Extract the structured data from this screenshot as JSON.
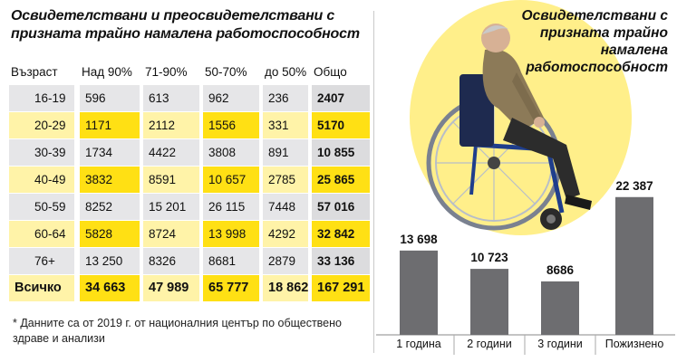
{
  "left_title": "Освидетелствани и преосвидетелствани с призната трайно намалена  работоспособност",
  "table": {
    "headers": [
      "Възраст",
      "Над 90%",
      "71-90%",
      "50-70%",
      "до 50%",
      "Общо"
    ],
    "rows": [
      [
        "16-19",
        "596",
        "613",
        "962",
        "236",
        "2407"
      ],
      [
        "20-29",
        "1171",
        "2112",
        "1556",
        "331",
        "5170"
      ],
      [
        "30-39",
        "1734",
        "4422",
        "3808",
        "891",
        "10 855"
      ],
      [
        "40-49",
        "3832",
        "8591",
        "10 657",
        "2785",
        "25 865"
      ],
      [
        "50-59",
        "8252",
        "15 201",
        "26 115",
        "7448",
        "57 016"
      ],
      [
        "60-64",
        "5828",
        "8724",
        "13 998",
        "4292",
        "32 842"
      ],
      [
        "76+",
        "13 250",
        "8326",
        "8681",
        "2879",
        "33 136"
      ],
      [
        "Всичко",
        "34 663",
        "47 989",
        "65 777",
        "18 862",
        "167 291"
      ]
    ]
  },
  "footnote": "* Данните са от 2019 г.  от националния център по обществено здраве и анализи",
  "right_title": "Освидетелствани с призната трайно намалена работоспособност",
  "colors": {
    "bar": "#6d6d70",
    "yellow": "#ffe014",
    "light_yellow": "#fff3a8",
    "grey": "#e6e6e8"
  },
  "icons": [
    "wheelchair-person-illustration"
  ],
  "chart_data": {
    "type": "bar",
    "title": "Освидетелствани с призната трайно намалена работоспособност",
    "categories": [
      "1 година",
      "2 години",
      "3 години",
      "Пожизнено"
    ],
    "values": [
      13698,
      10723,
      8686,
      22387
    ],
    "value_labels": [
      "13 698",
      "10 723",
      "8686",
      "22 387"
    ],
    "ylim": [
      0,
      25000
    ],
    "grid": false,
    "legend": "none"
  }
}
